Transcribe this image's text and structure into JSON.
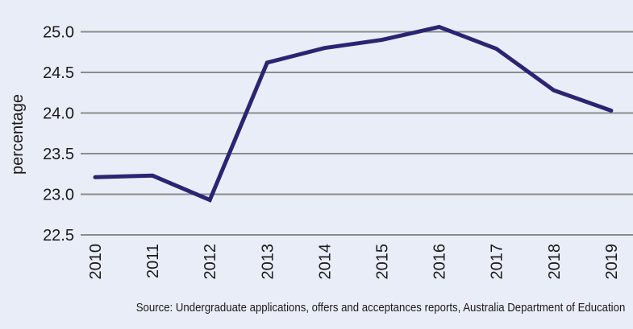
{
  "chart_data": {
    "type": "line",
    "title": "",
    "xlabel": "",
    "ylabel": "percentage",
    "categories": [
      "2010",
      "2011",
      "2012",
      "2013",
      "2014",
      "2015",
      "2016",
      "2017",
      "2018",
      "2019"
    ],
    "series": [
      {
        "values": [
          23.21,
          23.23,
          22.93,
          24.62,
          24.8,
          24.9,
          25.06,
          24.79,
          24.28,
          24.03
        ]
      }
    ],
    "ylim": [
      22.5,
      25.0
    ],
    "yticks": [
      "22.5",
      "23.0",
      "23.5",
      "24.0",
      "24.5",
      "25.0"
    ],
    "grid": true,
    "legend": "none",
    "colors": {
      "line": "#2b2472",
      "grid": "#8c8c8c",
      "background": "#e9edf7"
    }
  },
  "source": "Source: Undergraduate applications, offers and acceptances reports, Australia Department of Education"
}
